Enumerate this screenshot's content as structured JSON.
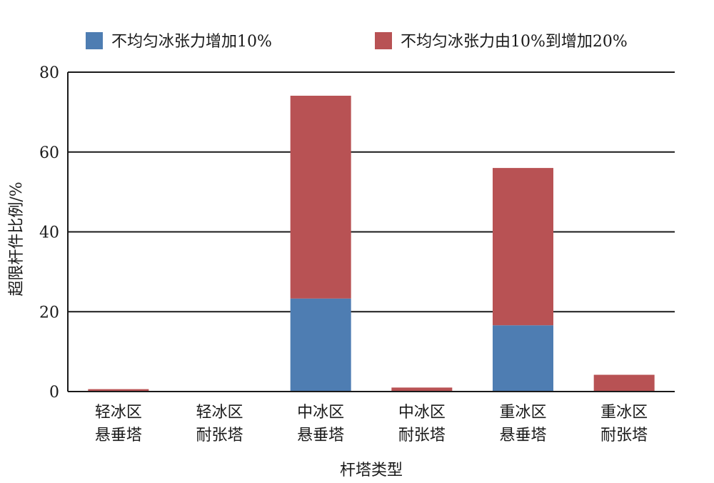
{
  "chart_data": {
    "type": "bar",
    "stacked": true,
    "categories": [
      [
        "轻冰区",
        "悬垂塔"
      ],
      [
        "轻冰区",
        "耐张塔"
      ],
      [
        "中冰区",
        "悬垂塔"
      ],
      [
        "中冰区",
        "耐张塔"
      ],
      [
        "重冰区",
        "悬垂塔"
      ],
      [
        "重冰区",
        "耐张塔"
      ]
    ],
    "series": [
      {
        "name": "不均匀冰张力增加10%",
        "color": "#4e7db2",
        "values": [
          0,
          0,
          23.3,
          0,
          16.6,
          0
        ]
      },
      {
        "name": "不均匀冰张力由10%到增加20%",
        "color": "#b85254",
        "values": [
          0.6,
          0,
          50.8,
          1.0,
          39.4,
          4.2
        ]
      }
    ],
    "xlabel": "杆塔类型",
    "ylabel": "超限杆件比例/%",
    "ylim": [
      0,
      80
    ],
    "yticks": [
      0,
      20,
      40,
      60,
      80
    ],
    "grid": true,
    "legend_position": "top"
  }
}
